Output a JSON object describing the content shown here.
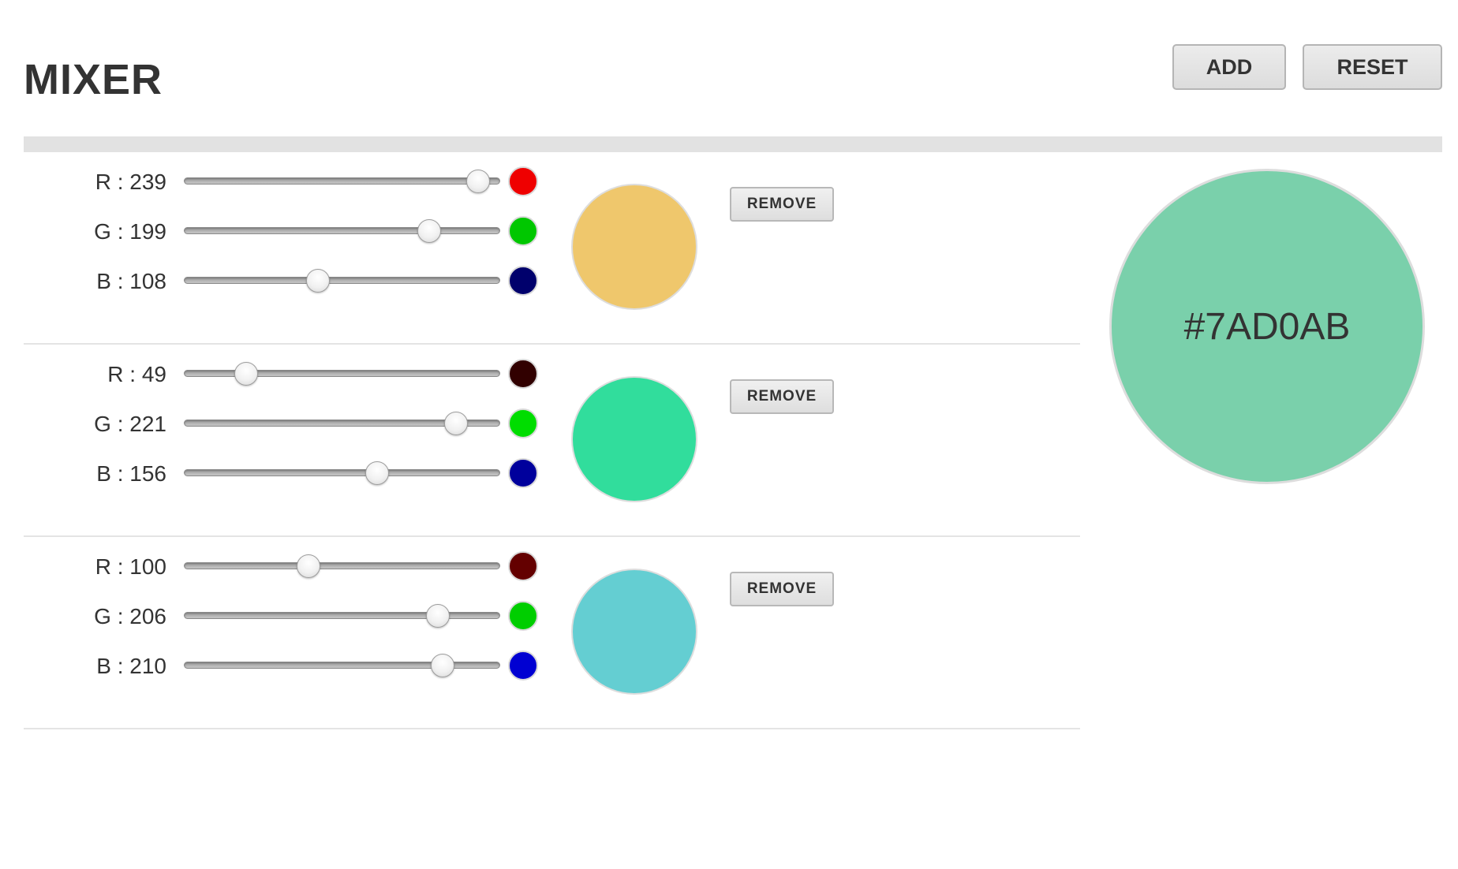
{
  "app": {
    "title": "MIXER"
  },
  "toolbar": {
    "add_label": "ADD",
    "reset_label": "RESET"
  },
  "mixers": [
    {
      "channels": [
        {
          "key": "r",
          "label": "R : 239",
          "value": 239,
          "dot_color": "#ef0000"
        },
        {
          "key": "g",
          "label": "G : 199",
          "value": 199,
          "dot_color": "#00c700"
        },
        {
          "key": "b",
          "label": "B : 108",
          "value": 108,
          "dot_color": "#00006c"
        }
      ],
      "color": "#efc76c",
      "remove_label": "REMOVE"
    },
    {
      "channels": [
        {
          "key": "r",
          "label": "R : 49",
          "value": 49,
          "dot_color": "#310000"
        },
        {
          "key": "g",
          "label": "G : 221",
          "value": 221,
          "dot_color": "#00dd00"
        },
        {
          "key": "b",
          "label": "B : 156",
          "value": 156,
          "dot_color": "#00009c"
        }
      ],
      "color": "#31dd9c",
      "remove_label": "REMOVE"
    },
    {
      "channels": [
        {
          "key": "r",
          "label": "R : 100",
          "value": 100,
          "dot_color": "#640000"
        },
        {
          "key": "g",
          "label": "G : 206",
          "value": 206,
          "dot_color": "#00ce00"
        },
        {
          "key": "b",
          "label": "B : 210",
          "value": 210,
          "dot_color": "#0000d2"
        }
      ],
      "color": "#64ced2",
      "remove_label": "REMOVE"
    }
  ],
  "result": {
    "hex": "#7AD0AB",
    "color": "#7ad0ab"
  },
  "slider_max": 255
}
